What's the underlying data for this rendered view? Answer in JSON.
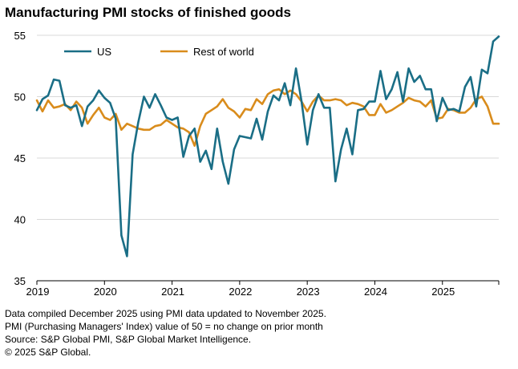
{
  "title": "Manufacturing PMI stocks of finished goods",
  "colors": {
    "us": "#1a6e86",
    "row": "#d98c1c",
    "grid": "#d9d9d9",
    "axis": "#000000"
  },
  "footnotes": [
    "Data compiled December 2025 using PMI data updated to November 2025.",
    "PMI (Purchasing Managers' Index) value of 50 = no change on prior month",
    "Source: S&P Global PMI, S&P Global Market Intelligence.",
    "© 2025 S&P Global."
  ],
  "chart_data": {
    "type": "line",
    "title": "Manufacturing PMI stocks of finished goods",
    "xlabel": "",
    "ylabel": "",
    "ylim": [
      35,
      55
    ],
    "yticks": [
      35,
      40,
      45,
      50,
      55
    ],
    "xlim": [
      "2019-01",
      "2025-11"
    ],
    "xticks": [
      "2019",
      "2020",
      "2021",
      "2022",
      "2023",
      "2024",
      "2025"
    ],
    "grid": true,
    "legend": "top-left",
    "x": [
      "2019-01",
      "2019-02",
      "2019-03",
      "2019-04",
      "2019-05",
      "2019-06",
      "2019-07",
      "2019-08",
      "2019-09",
      "2019-10",
      "2019-11",
      "2019-12",
      "2020-01",
      "2020-02",
      "2020-03",
      "2020-04",
      "2020-05",
      "2020-06",
      "2020-07",
      "2020-08",
      "2020-09",
      "2020-10",
      "2020-11",
      "2020-12",
      "2021-01",
      "2021-02",
      "2021-03",
      "2021-04",
      "2021-05",
      "2021-06",
      "2021-07",
      "2021-08",
      "2021-09",
      "2021-10",
      "2021-11",
      "2021-12",
      "2022-01",
      "2022-02",
      "2022-03",
      "2022-04",
      "2022-05",
      "2022-06",
      "2022-07",
      "2022-08",
      "2022-09",
      "2022-10",
      "2022-11",
      "2022-12",
      "2023-01",
      "2023-02",
      "2023-03",
      "2023-04",
      "2023-05",
      "2023-06",
      "2023-07",
      "2023-08",
      "2023-09",
      "2023-10",
      "2023-11",
      "2023-12",
      "2024-01",
      "2024-02",
      "2024-03",
      "2024-04",
      "2024-05",
      "2024-06",
      "2024-07",
      "2024-08",
      "2024-09",
      "2024-10",
      "2024-11",
      "2024-12",
      "2025-01",
      "2025-02",
      "2025-03",
      "2025-04",
      "2025-05",
      "2025-06",
      "2025-07",
      "2025-08",
      "2025-09",
      "2025-10",
      "2025-11"
    ],
    "series": [
      {
        "name": "US",
        "color": "#1a6e86",
        "values": [
          48.9,
          49.8,
          50.1,
          51.4,
          51.3,
          49.3,
          49.1,
          49.3,
          47.6,
          49.2,
          49.7,
          50.5,
          49.9,
          49.5,
          48.2,
          38.7,
          37.0,
          45.3,
          47.9,
          50.0,
          49.1,
          50.2,
          49.3,
          48.3,
          48.1,
          48.3,
          45.1,
          46.8,
          47.4,
          44.7,
          45.6,
          44.1,
          47.4,
          44.7,
          42.9,
          45.7,
          46.8,
          46.7,
          46.6,
          48.2,
          46.5,
          48.8,
          50.1,
          49.7,
          51.1,
          49.3,
          52.3,
          49.6,
          46.1,
          48.9,
          50.2,
          49.1,
          49.1,
          43.1,
          45.7,
          47.4,
          45.3,
          48.9,
          49.0,
          49.6,
          49.6,
          52.1,
          49.8,
          50.6,
          52.0,
          49.6,
          52.3,
          51.2,
          51.7,
          50.6,
          50.6,
          48.0,
          49.9,
          48.9,
          49.0,
          48.8,
          50.8,
          51.6,
          49.2,
          52.2,
          51.9,
          54.5,
          54.9
        ]
      },
      {
        "name": "Rest of world",
        "color": "#d98c1c",
        "values": [
          49.7,
          48.8,
          49.7,
          49.1,
          49.2,
          49.4,
          48.9,
          49.6,
          49.1,
          47.8,
          48.5,
          49.1,
          48.3,
          48.1,
          48.6,
          47.3,
          47.8,
          47.6,
          47.4,
          47.3,
          47.3,
          47.6,
          47.7,
          48.1,
          47.8,
          47.5,
          47.4,
          47.1,
          46.0,
          47.6,
          48.6,
          48.9,
          49.2,
          49.8,
          49.1,
          48.8,
          48.3,
          49.0,
          48.9,
          49.8,
          49.4,
          50.2,
          50.5,
          50.6,
          50.2,
          50.5,
          50.2,
          49.6,
          48.8,
          49.6,
          50.1,
          49.7,
          49.7,
          49.8,
          49.7,
          49.3,
          49.5,
          49.4,
          49.2,
          48.5,
          48.5,
          49.4,
          48.7,
          48.9,
          49.2,
          49.5,
          49.9,
          49.7,
          49.6,
          49.2,
          49.7,
          48.2,
          48.3,
          49.0,
          48.9,
          48.7,
          48.7,
          49.1,
          49.8,
          50.0,
          49.2,
          47.8,
          47.8
        ]
      }
    ]
  }
}
